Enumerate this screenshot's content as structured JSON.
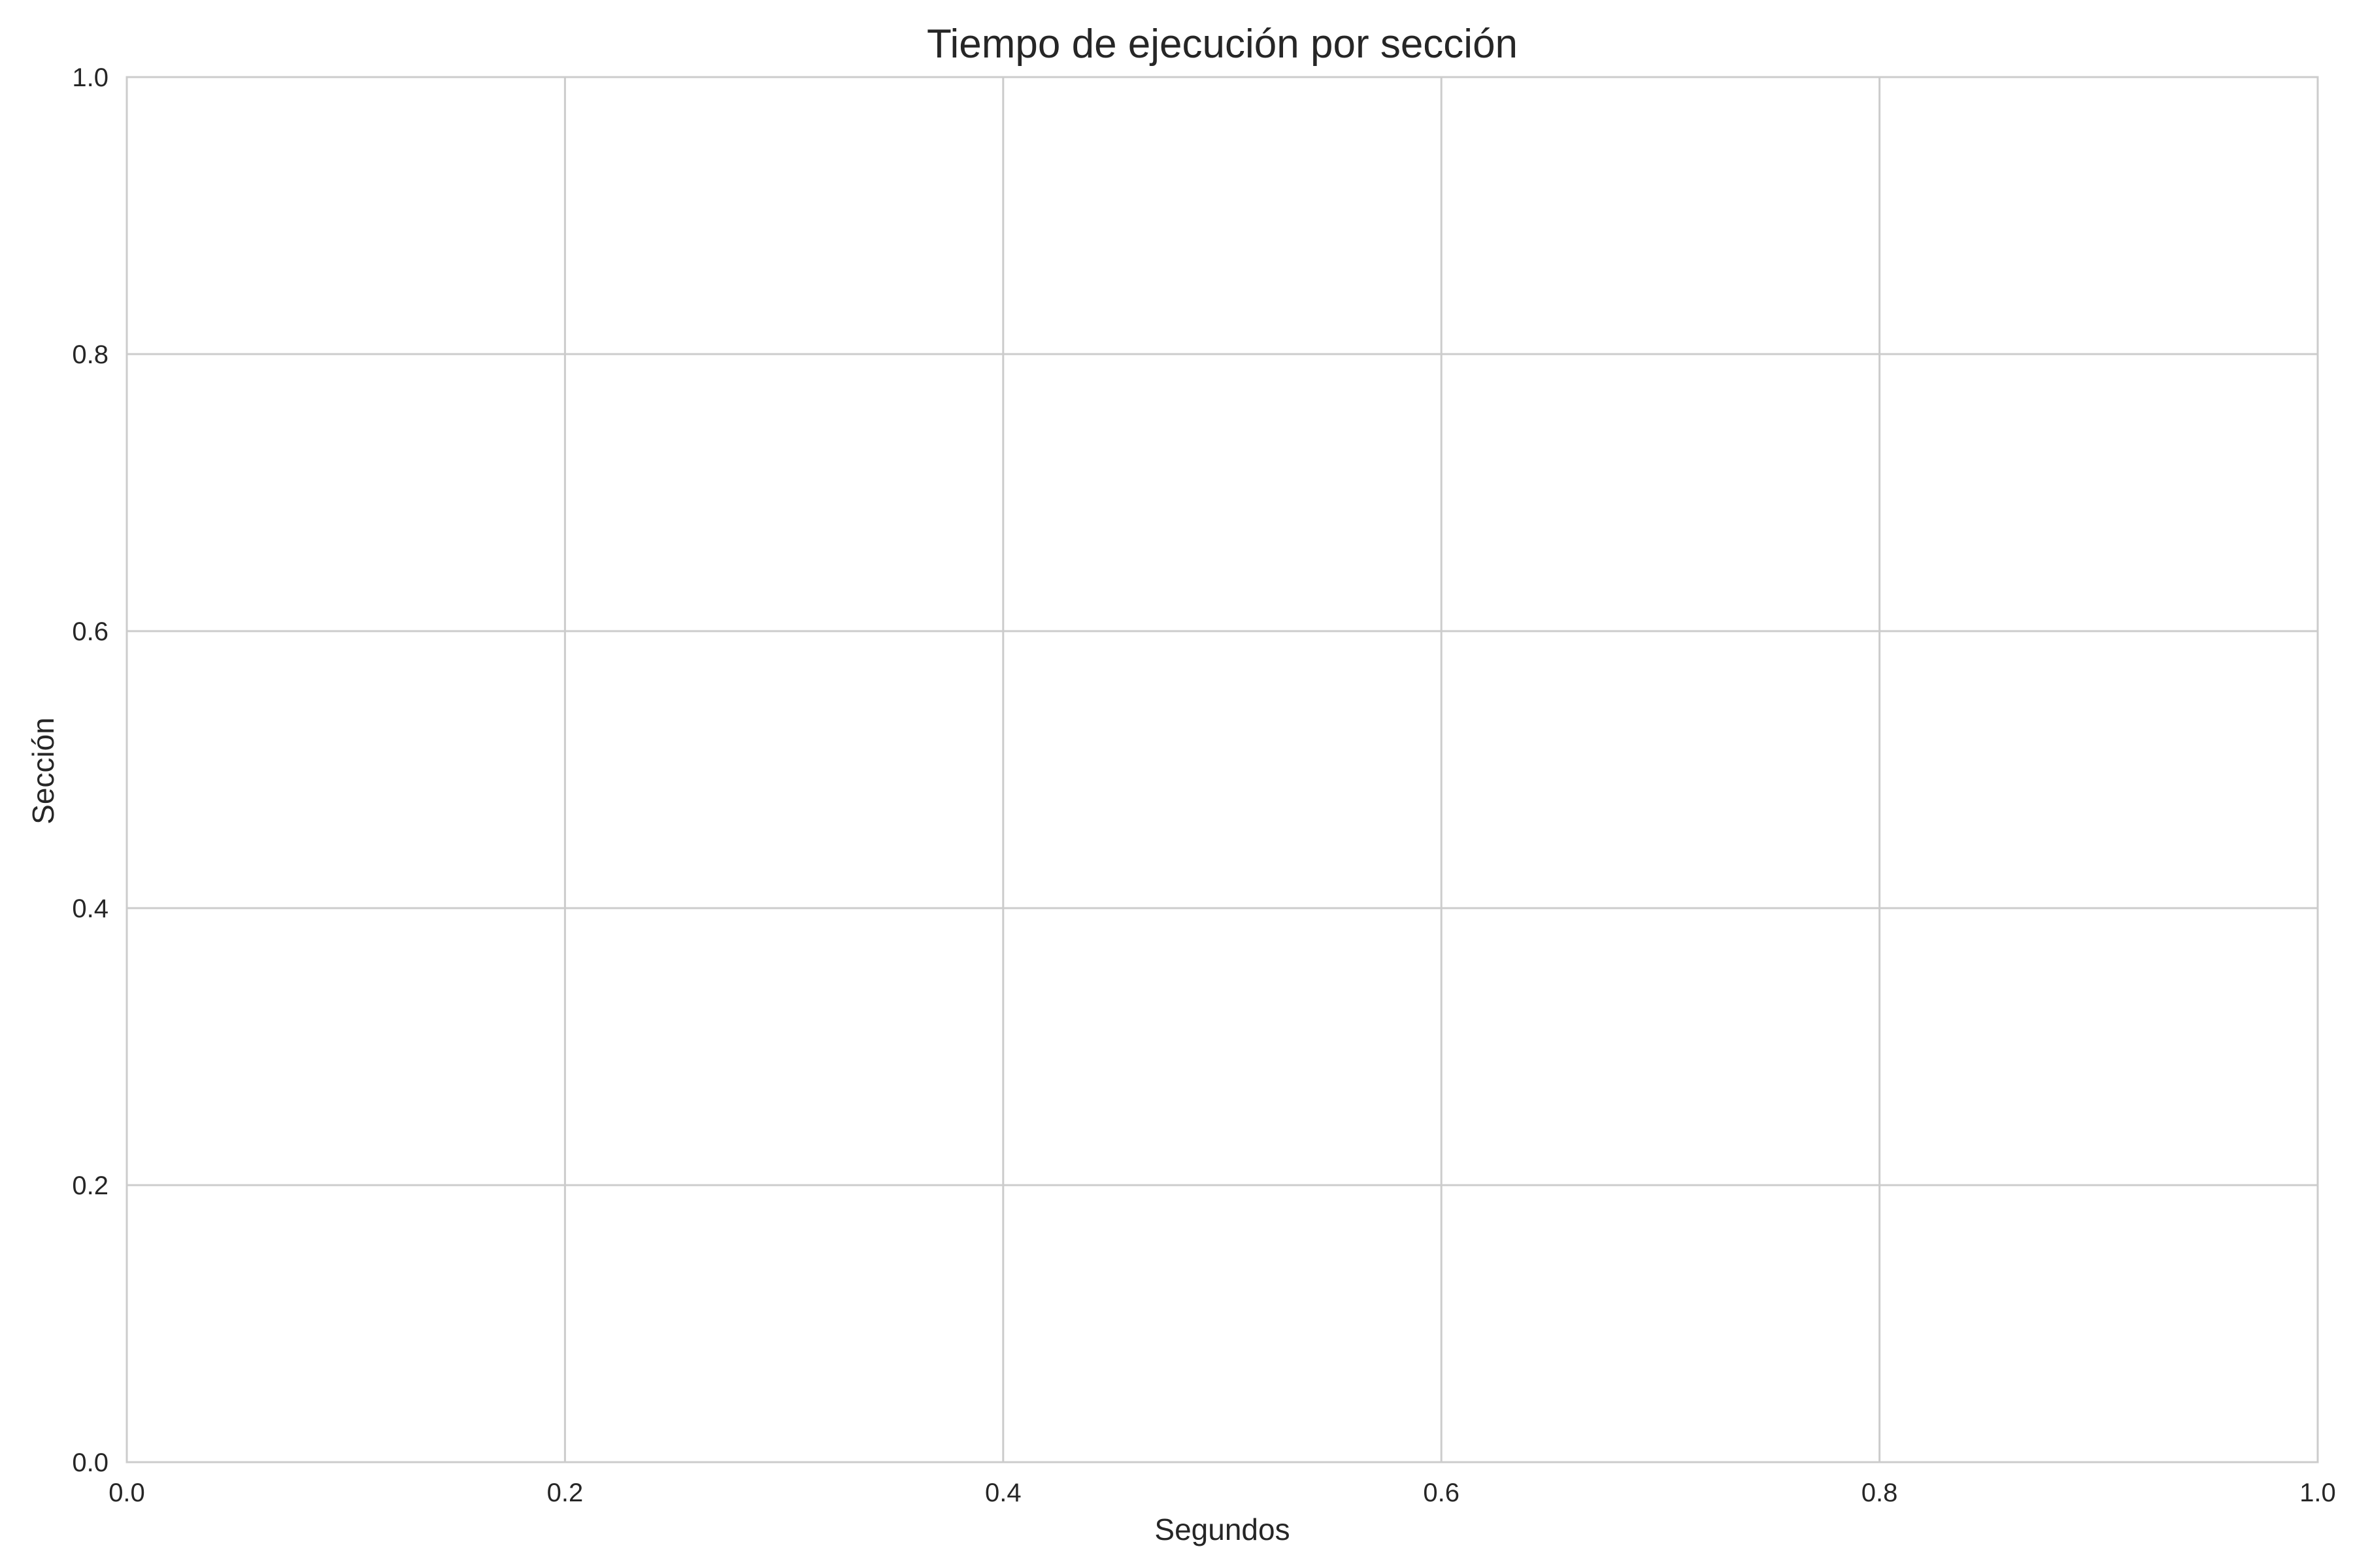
{
  "chart_data": {
    "type": "bar",
    "orientation": "horizontal",
    "title": "Tiempo de ejecución por sección",
    "xlabel": "Segundos",
    "ylabel": "Sección",
    "xlim": [
      0.0,
      1.0
    ],
    "ylim": [
      0.0,
      1.0
    ],
    "xticks": [
      "0.0",
      "0.2",
      "0.4",
      "0.6",
      "0.8",
      "1.0"
    ],
    "yticks": [
      "0.0",
      "0.2",
      "0.4",
      "0.6",
      "0.8",
      "1.0"
    ],
    "categories": [],
    "values": [],
    "grid": true,
    "colors": {
      "grid": "#cccccc",
      "text": "#262626",
      "background": "#ffffff"
    }
  }
}
